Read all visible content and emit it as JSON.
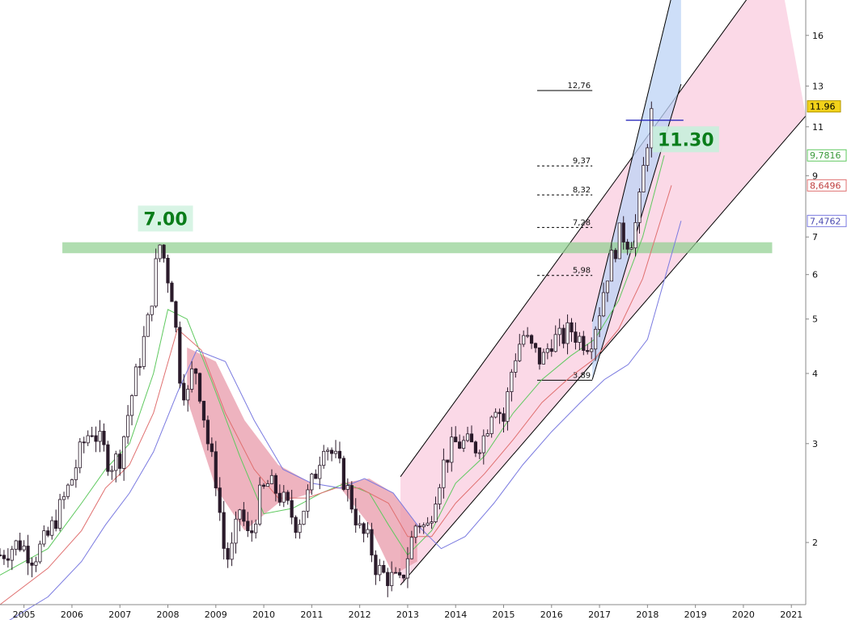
{
  "chart_data": {
    "type": "candlestick",
    "y_scale": "log",
    "ylim": [
      1.55,
      18.5
    ],
    "xlim": [
      2004.5,
      2021.3
    ],
    "grid": false,
    "y_ticks": [
      {
        "value": 2,
        "label": "2"
      },
      {
        "value": 3,
        "label": "3"
      },
      {
        "value": 4,
        "label": "4"
      },
      {
        "value": 5,
        "label": "5"
      },
      {
        "value": 6,
        "label": "6"
      },
      {
        "value": 7,
        "label": "7"
      },
      {
        "value": 9,
        "label": "9"
      },
      {
        "value": 11,
        "label": "11"
      },
      {
        "value": 13,
        "label": "13"
      },
      {
        "value": 16,
        "label": "16"
      }
    ],
    "x_ticks": [
      "2005",
      "2006",
      "2007",
      "2008",
      "2009",
      "2010",
      "2011",
      "2012",
      "2013",
      "2014",
      "2015",
      "2016",
      "2017",
      "2018",
      "2019",
      "2020",
      "2021"
    ],
    "price_path": [
      [
        2004.5,
        1.9
      ],
      [
        2004.9,
        2.0
      ],
      [
        2005.2,
        1.88
      ],
      [
        2005.5,
        2.05
      ],
      [
        2005.8,
        2.35
      ],
      [
        2006.0,
        2.6
      ],
      [
        2006.2,
        2.95
      ],
      [
        2006.4,
        3.2
      ],
      [
        2006.6,
        3.0
      ],
      [
        2006.8,
        2.75
      ],
      [
        2007.0,
        2.85
      ],
      [
        2007.2,
        3.5
      ],
      [
        2007.4,
        4.2
      ],
      [
        2007.6,
        5.0
      ],
      [
        2007.75,
        6.2
      ],
      [
        2007.85,
        6.9
      ],
      [
        2007.95,
        6.2
      ],
      [
        2008.1,
        5.5
      ],
      [
        2008.25,
        4.0
      ],
      [
        2008.4,
        3.6
      ],
      [
        2008.55,
        4.2
      ],
      [
        2008.7,
        3.6
      ],
      [
        2008.85,
        2.95
      ],
      [
        2009.0,
        2.6
      ],
      [
        2009.1,
        2.2
      ],
      [
        2009.2,
        1.85
      ],
      [
        2009.35,
        1.95
      ],
      [
        2009.5,
        2.3
      ],
      [
        2009.7,
        2.0
      ],
      [
        2009.9,
        2.4
      ],
      [
        2010.1,
        2.55
      ],
      [
        2010.3,
        2.45
      ],
      [
        2010.5,
        2.3
      ],
      [
        2010.7,
        2.15
      ],
      [
        2010.9,
        2.4
      ],
      [
        2011.1,
        2.7
      ],
      [
        2011.25,
        3.05
      ],
      [
        2011.4,
        2.9
      ],
      [
        2011.55,
        2.75
      ],
      [
        2011.7,
        2.55
      ],
      [
        2011.9,
        2.25
      ],
      [
        2012.0,
        2.1
      ],
      [
        2012.2,
        2.0
      ],
      [
        2012.35,
        1.8
      ],
      [
        2012.5,
        1.75
      ],
      [
        2012.7,
        1.72
      ],
      [
        2012.85,
        1.68
      ],
      [
        2013.0,
        1.9
      ],
      [
        2013.2,
        2.2
      ],
      [
        2013.4,
        2.1
      ],
      [
        2013.6,
        2.5
      ],
      [
        2013.8,
        2.85
      ],
      [
        2014.0,
        3.0
      ],
      [
        2014.2,
        3.0
      ],
      [
        2014.4,
        2.95
      ],
      [
        2014.6,
        3.1
      ],
      [
        2014.8,
        3.6
      ],
      [
        2015.0,
        3.3
      ],
      [
        2015.2,
        4.2
      ],
      [
        2015.4,
        4.7
      ],
      [
        2015.6,
        4.4
      ],
      [
        2015.8,
        4.2
      ],
      [
        2016.0,
        4.6
      ],
      [
        2016.2,
        4.6
      ],
      [
        2016.4,
        4.8
      ],
      [
        2016.6,
        4.6
      ],
      [
        2016.8,
        4.55
      ],
      [
        2017.0,
        5.2
      ],
      [
        2017.15,
        6.0
      ],
      [
        2017.3,
        6.6
      ],
      [
        2017.45,
        7.2
      ],
      [
        2017.55,
        6.9
      ],
      [
        2017.7,
        7.0
      ],
      [
        2017.85,
        8.2
      ],
      [
        2017.95,
        9.8
      ],
      [
        2018.05,
        11.2
      ],
      [
        2018.12,
        11.96
      ]
    ],
    "moving_averages": [
      {
        "color": "#5fc95f",
        "points": [
          [
            2004.5,
            1.75
          ],
          [
            2005.5,
            1.95
          ],
          [
            2006.2,
            2.35
          ],
          [
            2006.7,
            2.7
          ],
          [
            2007.2,
            3.0
          ],
          [
            2007.7,
            4.0
          ],
          [
            2008.0,
            5.2
          ],
          [
            2008.4,
            5.0
          ],
          [
            2008.9,
            3.9
          ],
          [
            2009.5,
            2.85
          ],
          [
            2010.0,
            2.25
          ],
          [
            2010.6,
            2.3
          ],
          [
            2011.2,
            2.45
          ],
          [
            2011.7,
            2.55
          ],
          [
            2012.2,
            2.45
          ],
          [
            2012.6,
            2.15
          ],
          [
            2013.0,
            1.9
          ],
          [
            2013.5,
            2.1
          ],
          [
            2014.0,
            2.55
          ],
          [
            2014.6,
            2.85
          ],
          [
            2015.2,
            3.4
          ],
          [
            2015.8,
            3.9
          ],
          [
            2016.4,
            4.3
          ],
          [
            2016.9,
            4.6
          ],
          [
            2017.4,
            5.4
          ],
          [
            2017.9,
            7.0
          ],
          [
            2018.35,
            9.78
          ]
        ]
      },
      {
        "color": "#e07070",
        "points": [
          [
            2004.5,
            1.55
          ],
          [
            2005.5,
            1.8
          ],
          [
            2006.2,
            2.1
          ],
          [
            2006.7,
            2.5
          ],
          [
            2007.2,
            2.75
          ],
          [
            2007.7,
            3.4
          ],
          [
            2008.2,
            4.8
          ],
          [
            2008.7,
            4.4
          ],
          [
            2009.2,
            3.4
          ],
          [
            2009.8,
            2.7
          ],
          [
            2010.3,
            2.4
          ],
          [
            2010.9,
            2.4
          ],
          [
            2011.5,
            2.5
          ],
          [
            2012.0,
            2.5
          ],
          [
            2012.6,
            2.35
          ],
          [
            2013.0,
            2.05
          ],
          [
            2013.5,
            2.05
          ],
          [
            2014.0,
            2.35
          ],
          [
            2014.6,
            2.65
          ],
          [
            2015.2,
            3.05
          ],
          [
            2015.8,
            3.55
          ],
          [
            2016.4,
            3.95
          ],
          [
            2016.9,
            4.25
          ],
          [
            2017.4,
            4.8
          ],
          [
            2017.9,
            5.9
          ],
          [
            2018.5,
            8.65
          ]
        ]
      },
      {
        "color": "#7a7ae0",
        "points": [
          [
            2004.5,
            1.42
          ],
          [
            2005.5,
            1.6
          ],
          [
            2006.2,
            1.85
          ],
          [
            2006.7,
            2.15
          ],
          [
            2007.2,
            2.45
          ],
          [
            2007.7,
            2.9
          ],
          [
            2008.2,
            3.7
          ],
          [
            2008.6,
            4.4
          ],
          [
            2009.2,
            4.2
          ],
          [
            2009.8,
            3.3
          ],
          [
            2010.4,
            2.7
          ],
          [
            2011.0,
            2.55
          ],
          [
            2011.6,
            2.5
          ],
          [
            2012.1,
            2.6
          ],
          [
            2012.7,
            2.45
          ],
          [
            2013.2,
            2.15
          ],
          [
            2013.7,
            1.95
          ],
          [
            2014.2,
            2.05
          ],
          [
            2014.8,
            2.35
          ],
          [
            2015.4,
            2.75
          ],
          [
            2016.0,
            3.15
          ],
          [
            2016.6,
            3.55
          ],
          [
            2017.1,
            3.9
          ],
          [
            2017.6,
            4.15
          ],
          [
            2018.0,
            4.6
          ],
          [
            2018.7,
            7.48
          ]
        ]
      }
    ],
    "horizontal_zone": {
      "from_x": 2005.8,
      "to_x": 2020.6,
      "y_low": 6.55,
      "y_high": 6.85,
      "color": "#8fcf8f"
    },
    "callouts": [
      {
        "text": "7.00",
        "x": 2007.95,
        "y": 7.55,
        "color": "#0a7d1a",
        "bg": "#d4f3e2"
      },
      {
        "text": "11.30",
        "x": 2018.8,
        "y": 10.45,
        "color": "#0a7d1a",
        "bg": "#c8eedb"
      }
    ],
    "price_line": {
      "value": 11.3,
      "from_x": 2017.55,
      "to_x": 2018.75,
      "color": "#1b1bb8"
    },
    "fib_levels": [
      {
        "label": "12,76",
        "value": 12.76,
        "dashed": false
      },
      {
        "label": "9,37",
        "value": 9.37,
        "dashed": true
      },
      {
        "label": "8,32",
        "value": 8.32,
        "dashed": true
      },
      {
        "label": "7,28",
        "value": 7.28,
        "dashed": true
      },
      {
        "label": "5,98",
        "value": 5.98,
        "dashed": true
      },
      {
        "label": "3,89",
        "value": 3.89,
        "dashed": false
      }
    ],
    "fib_x_range": [
      2015.7,
      2016.85
    ],
    "channels": [
      {
        "fill": "#f9c4da",
        "lines": [
          [
            [
              2012.85,
              2.62
            ],
            [
              2020.7,
              22.0
            ]
          ],
          [
            [
              2012.85,
              1.68
            ],
            [
              2021.3,
              11.5
            ]
          ]
        ]
      },
      {
        "fill": "#bcd3f5",
        "lines": [
          [
            [
              2016.85,
              4.95
            ],
            [
              2018.7,
              22.0
            ]
          ],
          [
            [
              2016.85,
              3.9
            ],
            [
              2018.7,
              13.1
            ]
          ]
        ]
      }
    ],
    "bear_zones": [
      {
        "color": "#e89aaa",
        "upper": [
          [
            2008.4,
            4.45
          ],
          [
            2009.0,
            4.2
          ],
          [
            2009.6,
            3.3
          ],
          [
            2010.3,
            2.75
          ],
          [
            2011.0,
            2.55
          ]
        ],
        "lower": [
          [
            2008.4,
            3.6
          ],
          [
            2009.0,
            2.5
          ],
          [
            2009.6,
            2.1
          ],
          [
            2010.3,
            2.35
          ],
          [
            2011.0,
            2.45
          ]
        ]
      },
      {
        "color": "#e89aaa",
        "upper": [
          [
            2011.6,
            2.55
          ],
          [
            2012.2,
            2.6
          ],
          [
            2012.7,
            2.45
          ],
          [
            2013.2,
            2.15
          ]
        ],
        "lower": [
          [
            2011.6,
            2.5
          ],
          [
            2012.2,
            2.15
          ],
          [
            2012.7,
            1.75
          ],
          [
            2013.2,
            1.85
          ]
        ]
      }
    ],
    "badges": [
      {
        "text": "11.96",
        "value": 11.96,
        "bg": "#f2d21a",
        "border": "#b59a00",
        "color": "#000000"
      },
      {
        "text": "9,7816",
        "value": 9.7816,
        "bg": "#ffffff",
        "border": "#5fc95f",
        "color": "#3a9a3a"
      },
      {
        "text": "8,6496",
        "value": 8.6496,
        "bg": "#ffffff",
        "border": "#e07070",
        "color": "#c04040"
      },
      {
        "text": "7,4762",
        "value": 7.4762,
        "bg": "#ffffff",
        "border": "#7a7ae0",
        "color": "#4a4ab0"
      }
    ]
  }
}
